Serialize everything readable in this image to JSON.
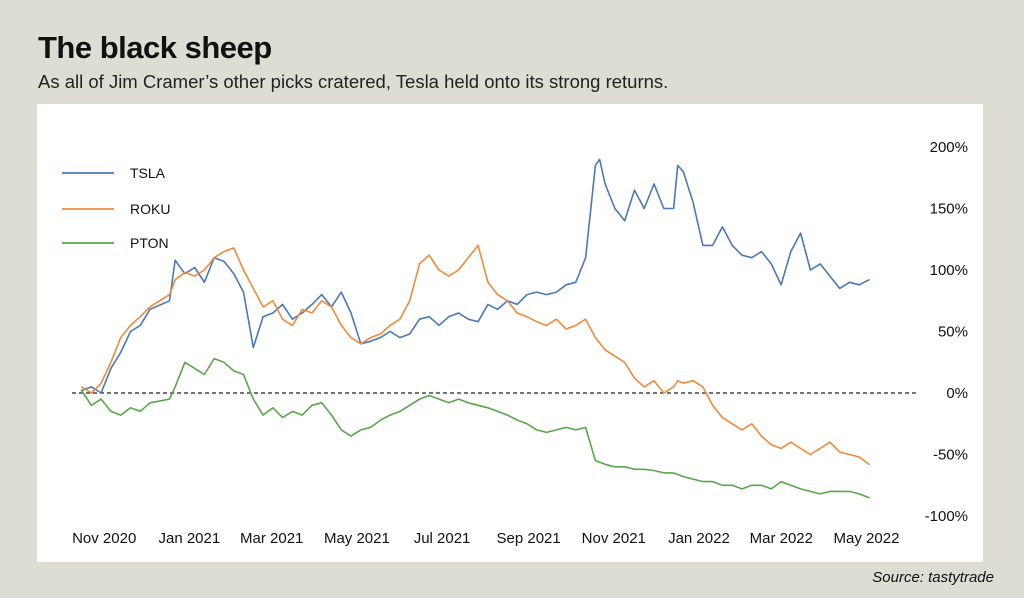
{
  "header": {
    "title": "The black sheep",
    "subtitle": "As all of Jim Cramer’s other picks cratered, Tesla held onto its strong returns."
  },
  "footer": {
    "source": "Source: tastytrade"
  },
  "colors": {
    "TSLA": "#4a78b8",
    "ROKU": "#ef8a3a",
    "PTON": "#5aa64a",
    "background": "#ddddd4",
    "panel": "#ffffff",
    "zero_line": "#222222"
  },
  "chart_data": {
    "type": "line",
    "title": "The black sheep",
    "subtitle": "As all of Jim Cramer’s other picks cratered, Tesla held onto its strong returns.",
    "xlabel": "",
    "ylabel": "",
    "x_tick_labels": [
      "Nov 2020",
      "Jan 2021",
      "Mar 2021",
      "May 2021",
      "Jul 2021",
      "Sep 2021",
      "Nov 2021",
      "Jan 2022",
      "Mar 2022",
      "May 2022"
    ],
    "x_tick_dates": [
      "2020-11-01",
      "2021-01-01",
      "2021-03-01",
      "2021-05-01",
      "2021-07-01",
      "2021-09-01",
      "2021-11-01",
      "2022-01-01",
      "2022-03-01",
      "2022-05-01"
    ],
    "y_tick_labels": [
      "200%",
      "150%",
      "100%",
      "50%",
      "0%",
      "-50%",
      "-100%"
    ],
    "y_ticks": [
      200,
      150,
      100,
      50,
      0,
      -50,
      -100
    ],
    "ylim": [
      -100,
      200
    ],
    "xlim": [
      "2020-10-29",
      "2022-05-25"
    ],
    "y_axis_position": "right",
    "zero_line": "dashed",
    "grid": false,
    "legend_position": "top-left",
    "series": [
      {
        "name": "TSLA",
        "color": "#4a78b8",
        "points": [
          [
            "2020-11-02",
            2
          ],
          [
            "2020-11-09",
            5
          ],
          [
            "2020-11-16",
            0
          ],
          [
            "2020-11-23",
            20
          ],
          [
            "2020-11-30",
            33
          ],
          [
            "2020-12-07",
            50
          ],
          [
            "2020-12-14",
            55
          ],
          [
            "2020-12-21",
            68
          ],
          [
            "2021-01-04",
            75
          ],
          [
            "2021-01-08",
            108
          ],
          [
            "2021-01-15",
            97
          ],
          [
            "2021-01-22",
            102
          ],
          [
            "2021-01-29",
            90
          ],
          [
            "2021-02-05",
            110
          ],
          [
            "2021-02-12",
            107
          ],
          [
            "2021-02-19",
            97
          ],
          [
            "2021-02-26",
            82
          ],
          [
            "2021-03-05",
            37
          ],
          [
            "2021-03-12",
            62
          ],
          [
            "2021-03-19",
            65
          ],
          [
            "2021-03-26",
            72
          ],
          [
            "2021-04-02",
            60
          ],
          [
            "2021-04-09",
            65
          ],
          [
            "2021-04-16",
            72
          ],
          [
            "2021-04-23",
            80
          ],
          [
            "2021-04-30",
            70
          ],
          [
            "2021-05-07",
            82
          ],
          [
            "2021-05-14",
            65
          ],
          [
            "2021-05-21",
            40
          ],
          [
            "2021-05-28",
            42
          ],
          [
            "2021-06-04",
            45
          ],
          [
            "2021-06-11",
            50
          ],
          [
            "2021-06-18",
            45
          ],
          [
            "2021-06-25",
            48
          ],
          [
            "2021-07-02",
            60
          ],
          [
            "2021-07-09",
            62
          ],
          [
            "2021-07-16",
            55
          ],
          [
            "2021-07-23",
            62
          ],
          [
            "2021-07-30",
            65
          ],
          [
            "2021-08-06",
            60
          ],
          [
            "2021-08-13",
            58
          ],
          [
            "2021-08-20",
            72
          ],
          [
            "2021-08-27",
            68
          ],
          [
            "2021-09-03",
            75
          ],
          [
            "2021-09-10",
            72
          ],
          [
            "2021-09-17",
            80
          ],
          [
            "2021-09-24",
            82
          ],
          [
            "2021-10-01",
            80
          ],
          [
            "2021-10-08",
            82
          ],
          [
            "2021-10-15",
            88
          ],
          [
            "2021-10-22",
            90
          ],
          [
            "2021-10-29",
            110
          ],
          [
            "2021-11-05",
            185
          ],
          [
            "2021-11-08",
            190
          ],
          [
            "2021-11-12",
            170
          ],
          [
            "2021-11-19",
            150
          ],
          [
            "2021-11-26",
            140
          ],
          [
            "2021-12-03",
            165
          ],
          [
            "2021-12-10",
            150
          ],
          [
            "2021-12-17",
            170
          ],
          [
            "2021-12-24",
            150
          ],
          [
            "2021-12-31",
            150
          ],
          [
            "2022-01-03",
            185
          ],
          [
            "2022-01-07",
            180
          ],
          [
            "2022-01-14",
            155
          ],
          [
            "2022-01-21",
            120
          ],
          [
            "2022-01-28",
            120
          ],
          [
            "2022-02-04",
            135
          ],
          [
            "2022-02-11",
            120
          ],
          [
            "2022-02-18",
            112
          ],
          [
            "2022-02-25",
            110
          ],
          [
            "2022-03-04",
            115
          ],
          [
            "2022-03-11",
            105
          ],
          [
            "2022-03-18",
            88
          ],
          [
            "2022-03-25",
            115
          ],
          [
            "2022-04-01",
            130
          ],
          [
            "2022-04-08",
            100
          ],
          [
            "2022-04-15",
            105
          ],
          [
            "2022-04-22",
            95
          ],
          [
            "2022-04-29",
            85
          ],
          [
            "2022-05-06",
            90
          ],
          [
            "2022-05-13",
            88
          ],
          [
            "2022-05-20",
            92
          ]
        ]
      },
      {
        "name": "ROKU",
        "color": "#ef8a3a",
        "points": [
          [
            "2020-11-02",
            5
          ],
          [
            "2020-11-09",
            0
          ],
          [
            "2020-11-16",
            8
          ],
          [
            "2020-11-23",
            25
          ],
          [
            "2020-11-30",
            45
          ],
          [
            "2020-12-07",
            55
          ],
          [
            "2020-12-14",
            62
          ],
          [
            "2020-12-21",
            70
          ],
          [
            "2021-01-04",
            80
          ],
          [
            "2021-01-08",
            92
          ],
          [
            "2021-01-15",
            98
          ],
          [
            "2021-01-22",
            95
          ],
          [
            "2021-01-29",
            100
          ],
          [
            "2021-02-05",
            110
          ],
          [
            "2021-02-12",
            115
          ],
          [
            "2021-02-19",
            118
          ],
          [
            "2021-02-26",
            100
          ],
          [
            "2021-03-05",
            85
          ],
          [
            "2021-03-12",
            70
          ],
          [
            "2021-03-19",
            75
          ],
          [
            "2021-03-26",
            60
          ],
          [
            "2021-04-02",
            55
          ],
          [
            "2021-04-09",
            68
          ],
          [
            "2021-04-16",
            65
          ],
          [
            "2021-04-23",
            75
          ],
          [
            "2021-04-30",
            70
          ],
          [
            "2021-05-07",
            55
          ],
          [
            "2021-05-14",
            45
          ],
          [
            "2021-05-21",
            40
          ],
          [
            "2021-05-28",
            45
          ],
          [
            "2021-06-04",
            48
          ],
          [
            "2021-06-11",
            55
          ],
          [
            "2021-06-18",
            60
          ],
          [
            "2021-06-25",
            75
          ],
          [
            "2021-07-02",
            105
          ],
          [
            "2021-07-09",
            112
          ],
          [
            "2021-07-16",
            100
          ],
          [
            "2021-07-23",
            95
          ],
          [
            "2021-07-30",
            100
          ],
          [
            "2021-08-06",
            110
          ],
          [
            "2021-08-13",
            120
          ],
          [
            "2021-08-20",
            90
          ],
          [
            "2021-08-27",
            80
          ],
          [
            "2021-09-03",
            75
          ],
          [
            "2021-09-10",
            65
          ],
          [
            "2021-09-17",
            62
          ],
          [
            "2021-09-24",
            58
          ],
          [
            "2021-10-01",
            55
          ],
          [
            "2021-10-08",
            60
          ],
          [
            "2021-10-15",
            52
          ],
          [
            "2021-10-22",
            55
          ],
          [
            "2021-10-29",
            60
          ],
          [
            "2021-11-05",
            45
          ],
          [
            "2021-11-12",
            35
          ],
          [
            "2021-11-19",
            30
          ],
          [
            "2021-11-26",
            25
          ],
          [
            "2021-12-03",
            12
          ],
          [
            "2021-12-10",
            5
          ],
          [
            "2021-12-17",
            10
          ],
          [
            "2021-12-24",
            0
          ],
          [
            "2021-12-31",
            5
          ],
          [
            "2022-01-03",
            10
          ],
          [
            "2022-01-07",
            8
          ],
          [
            "2022-01-14",
            10
          ],
          [
            "2022-01-21",
            5
          ],
          [
            "2022-01-28",
            -10
          ],
          [
            "2022-02-04",
            -20
          ],
          [
            "2022-02-11",
            -25
          ],
          [
            "2022-02-18",
            -30
          ],
          [
            "2022-02-25",
            -25
          ],
          [
            "2022-03-04",
            -35
          ],
          [
            "2022-03-11",
            -42
          ],
          [
            "2022-03-18",
            -45
          ],
          [
            "2022-03-25",
            -40
          ],
          [
            "2022-04-01",
            -45
          ],
          [
            "2022-04-08",
            -50
          ],
          [
            "2022-04-15",
            -45
          ],
          [
            "2022-04-22",
            -40
          ],
          [
            "2022-04-29",
            -48
          ],
          [
            "2022-05-06",
            -50
          ],
          [
            "2022-05-13",
            -52
          ],
          [
            "2022-05-20",
            -58
          ]
        ]
      },
      {
        "name": "PTON",
        "color": "#5aa64a",
        "points": [
          [
            "2020-11-02",
            2
          ],
          [
            "2020-11-09",
            -10
          ],
          [
            "2020-11-16",
            -5
          ],
          [
            "2020-11-23",
            -15
          ],
          [
            "2020-11-30",
            -18
          ],
          [
            "2020-12-07",
            -12
          ],
          [
            "2020-12-14",
            -15
          ],
          [
            "2020-12-21",
            -8
          ],
          [
            "2021-01-04",
            -5
          ],
          [
            "2021-01-08",
            5
          ],
          [
            "2021-01-15",
            25
          ],
          [
            "2021-01-22",
            20
          ],
          [
            "2021-01-29",
            15
          ],
          [
            "2021-02-05",
            28
          ],
          [
            "2021-02-12",
            25
          ],
          [
            "2021-02-19",
            18
          ],
          [
            "2021-02-26",
            15
          ],
          [
            "2021-03-05",
            -5
          ],
          [
            "2021-03-12",
            -18
          ],
          [
            "2021-03-19",
            -12
          ],
          [
            "2021-03-26",
            -20
          ],
          [
            "2021-04-02",
            -15
          ],
          [
            "2021-04-09",
            -18
          ],
          [
            "2021-04-16",
            -10
          ],
          [
            "2021-04-23",
            -8
          ],
          [
            "2021-04-30",
            -18
          ],
          [
            "2021-05-07",
            -30
          ],
          [
            "2021-05-14",
            -35
          ],
          [
            "2021-05-21",
            -30
          ],
          [
            "2021-05-28",
            -28
          ],
          [
            "2021-06-04",
            -22
          ],
          [
            "2021-06-11",
            -18
          ],
          [
            "2021-06-18",
            -15
          ],
          [
            "2021-06-25",
            -10
          ],
          [
            "2021-07-02",
            -5
          ],
          [
            "2021-07-09",
            -2
          ],
          [
            "2021-07-16",
            -5
          ],
          [
            "2021-07-23",
            -8
          ],
          [
            "2021-07-30",
            -5
          ],
          [
            "2021-08-06",
            -8
          ],
          [
            "2021-08-13",
            -10
          ],
          [
            "2021-08-20",
            -12
          ],
          [
            "2021-08-27",
            -15
          ],
          [
            "2021-09-03",
            -18
          ],
          [
            "2021-09-10",
            -22
          ],
          [
            "2021-09-17",
            -25
          ],
          [
            "2021-09-24",
            -30
          ],
          [
            "2021-10-01",
            -32
          ],
          [
            "2021-10-08",
            -30
          ],
          [
            "2021-10-15",
            -28
          ],
          [
            "2021-10-22",
            -30
          ],
          [
            "2021-10-29",
            -28
          ],
          [
            "2021-11-05",
            -55
          ],
          [
            "2021-11-12",
            -58
          ],
          [
            "2021-11-19",
            -60
          ],
          [
            "2021-11-26",
            -60
          ],
          [
            "2021-12-03",
            -62
          ],
          [
            "2021-12-10",
            -62
          ],
          [
            "2021-12-17",
            -63
          ],
          [
            "2021-12-24",
            -65
          ],
          [
            "2021-12-31",
            -65
          ],
          [
            "2022-01-07",
            -68
          ],
          [
            "2022-01-14",
            -70
          ],
          [
            "2022-01-21",
            -72
          ],
          [
            "2022-01-28",
            -72
          ],
          [
            "2022-02-04",
            -75
          ],
          [
            "2022-02-11",
            -75
          ],
          [
            "2022-02-18",
            -78
          ],
          [
            "2022-02-25",
            -75
          ],
          [
            "2022-03-04",
            -75
          ],
          [
            "2022-03-11",
            -78
          ],
          [
            "2022-03-18",
            -72
          ],
          [
            "2022-03-25",
            -75
          ],
          [
            "2022-04-01",
            -78
          ],
          [
            "2022-04-08",
            -80
          ],
          [
            "2022-04-15",
            -82
          ],
          [
            "2022-04-22",
            -80
          ],
          [
            "2022-04-29",
            -80
          ],
          [
            "2022-05-06",
            -80
          ],
          [
            "2022-05-13",
            -82
          ],
          [
            "2022-05-20",
            -85
          ]
        ]
      }
    ]
  }
}
